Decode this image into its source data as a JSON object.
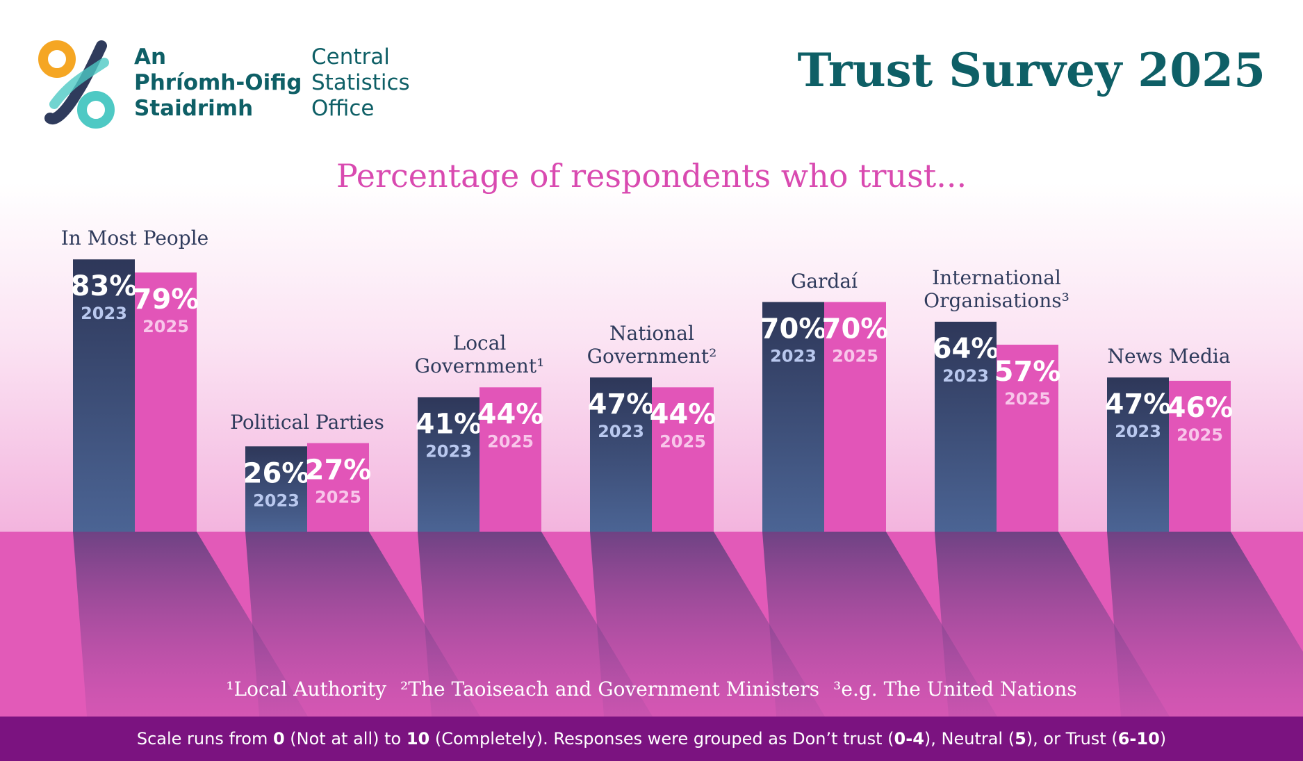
{
  "logo": {
    "irish": [
      "An",
      "Phríomh-Oifig",
      "Staidrimh"
    ],
    "english": [
      "Central",
      "Statistics",
      "Office"
    ]
  },
  "chart_data": {
    "type": "bar",
    "title": "Trust Survey 2025",
    "subtitle": "Percentage of respondents who trust...",
    "categories": [
      "In Most People",
      "Political Parties",
      "Local Government¹",
      "National Government²",
      "Gardaí",
      "International Organisations³",
      "News Media"
    ],
    "series": [
      {
        "name": "2023",
        "color": "#34406a",
        "values": [
          83,
          26,
          41,
          47,
          70,
          64,
          47
        ],
        "value_labels": [
          "83%",
          "26%",
          "41%",
          "47%",
          "70%",
          "64%",
          "47%"
        ]
      },
      {
        "name": "2025",
        "color": "#e255b8",
        "values": [
          79,
          27,
          44,
          44,
          70,
          57,
          46
        ],
        "value_labels": [
          "79%",
          "27%",
          "44%",
          "44%",
          "70%",
          "57%",
          "46%"
        ]
      }
    ]
  },
  "footnotes": [
    "¹Local Authority",
    "²The Taoiseach and Government Ministers",
    "³e.g. The United Nations"
  ],
  "scale_note": [
    "Scale runs from ",
    "0",
    " (Not at all) to ",
    "10",
    " (Completely). Responses were grouped as Don’t trust (",
    "0-4",
    "), Neutral (",
    "5",
    "), or Trust (",
    "6-10",
    ")"
  ]
}
